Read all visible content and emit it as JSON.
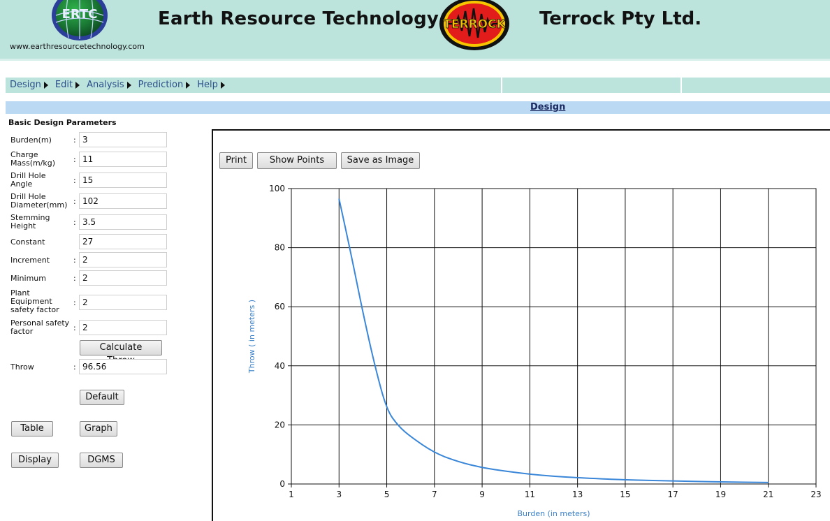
{
  "header": {
    "logo_left_text": "ERTC",
    "site_url": "www.earthresourcetechnology.com",
    "company_1": "Earth Resource Technology",
    "logo_right_text": "TERROCK",
    "company_2": "Terrock Pty Ltd."
  },
  "menu": {
    "items": [
      {
        "label": "Design"
      },
      {
        "label": "Edit"
      },
      {
        "label": "Analysis"
      },
      {
        "label": "Prediction"
      },
      {
        "label": "Help"
      }
    ]
  },
  "section_header": "Design",
  "form": {
    "title": "Basic Design Parameters",
    "fields": [
      {
        "label": "Burden(m)",
        "value": "3",
        "colon": ":"
      },
      {
        "label": "Charge Mass(m/kg)",
        "value": "11",
        "colon": ":"
      },
      {
        "label": "Drill Hole Angle",
        "value": "15",
        "colon": ":"
      },
      {
        "label": "Drill Hole Diameter(mm)",
        "value": "102",
        "colon": ":"
      },
      {
        "label": "Stemming Height",
        "value": "3.5",
        "colon": ":"
      },
      {
        "label": "Constant",
        "value": "27",
        "colon": ""
      },
      {
        "label": "Increment",
        "value": "2",
        "colon": ":"
      },
      {
        "label": "Minimum",
        "value": "2",
        "colon": ":"
      },
      {
        "label": "Plant Equipment safety factor",
        "value": "2",
        "colon": ":"
      },
      {
        "label": "Personal safety factor",
        "value": "2",
        "colon": ":"
      }
    ],
    "calculate_label": "Calculate Throw",
    "throw_label": "Throw",
    "throw_colon": ":",
    "throw_value": "96.56",
    "default_label": "Default",
    "table_label": "Table",
    "graph_label": "Graph",
    "display_label": "Display",
    "dgms_label": "DGMS"
  },
  "chart_toolbar": {
    "print_label": "Print",
    "show_points_label": "Show Points",
    "save_image_label": "Save as Image"
  },
  "chart_data": {
    "type": "line",
    "xlabel": "Burden (in meters)",
    "ylabel": "Throw ( in meters )",
    "xlim": [
      1,
      23
    ],
    "ylim": [
      0,
      100
    ],
    "xticks": [
      1,
      3,
      5,
      7,
      9,
      11,
      13,
      15,
      17,
      19,
      21,
      23
    ],
    "yticks": [
      0,
      20,
      40,
      60,
      80,
      100
    ],
    "grid": true,
    "series_color": "#3a86d8",
    "x": [
      3,
      3.5,
      4,
      4.5,
      5,
      5.5,
      6,
      7,
      8,
      9,
      10,
      11,
      12,
      13,
      15,
      17,
      19,
      21
    ],
    "y": [
      96.56,
      78,
      58,
      40,
      25,
      19.5,
      16,
      10.5,
      7.5,
      5.5,
      4.3,
      3.3,
      2.6,
      2.1,
      1.4,
      1.0,
      0.7,
      0.5
    ]
  }
}
